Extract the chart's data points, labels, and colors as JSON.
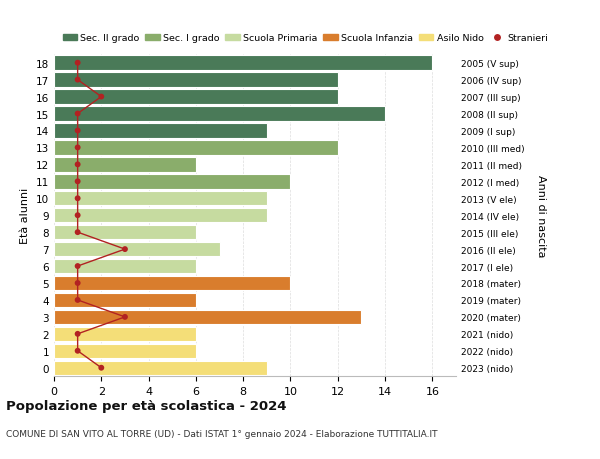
{
  "ages": [
    18,
    17,
    16,
    15,
    14,
    13,
    12,
    11,
    10,
    9,
    8,
    7,
    6,
    5,
    4,
    3,
    2,
    1,
    0
  ],
  "right_labels": [
    "2005 (V sup)",
    "2006 (IV sup)",
    "2007 (III sup)",
    "2008 (II sup)",
    "2009 (I sup)",
    "2010 (III med)",
    "2011 (II med)",
    "2012 (I med)",
    "2013 (V ele)",
    "2014 (IV ele)",
    "2015 (III ele)",
    "2016 (II ele)",
    "2017 (I ele)",
    "2018 (mater)",
    "2019 (mater)",
    "2020 (mater)",
    "2021 (nido)",
    "2022 (nido)",
    "2023 (nido)"
  ],
  "bar_values": [
    16,
    12,
    12,
    14,
    9,
    12,
    6,
    10,
    9,
    9,
    6,
    7,
    6,
    10,
    6,
    13,
    6,
    6,
    9
  ],
  "bar_colors": [
    "#4a7a58",
    "#4a7a58",
    "#4a7a58",
    "#4a7a58",
    "#4a7a58",
    "#8aad6b",
    "#8aad6b",
    "#8aad6b",
    "#c6dba0",
    "#c6dba0",
    "#c6dba0",
    "#c6dba0",
    "#c6dba0",
    "#d97d2d",
    "#d97d2d",
    "#d97d2d",
    "#f4de78",
    "#f4de78",
    "#f4de78"
  ],
  "stranieri_values": [
    1,
    1,
    2,
    1,
    1,
    1,
    1,
    1,
    1,
    1,
    1,
    3,
    1,
    1,
    1,
    3,
    1,
    1,
    2
  ],
  "legend_labels": [
    "Sec. II grado",
    "Sec. I grado",
    "Scuola Primaria",
    "Scuola Infanzia",
    "Asilo Nido",
    "Stranieri"
  ],
  "legend_colors": [
    "#4a7a58",
    "#8aad6b",
    "#c6dba0",
    "#d97d2d",
    "#f4de78",
    "#b22222"
  ],
  "title": "Popolazione per età scolastica - 2024",
  "subtitle": "COMUNE DI SAN VITO AL TORRE (UD) - Dati ISTAT 1° gennaio 2024 - Elaborazione TUTTITALIA.IT",
  "ylabel_left": "Età alunni",
  "ylabel_right": "Anni di nascita",
  "xlim": [
    0,
    17
  ],
  "stranieri_color": "#b22222",
  "line_color": "#b22222",
  "bg_color": "#ffffff",
  "grid_color": "#dddddd"
}
